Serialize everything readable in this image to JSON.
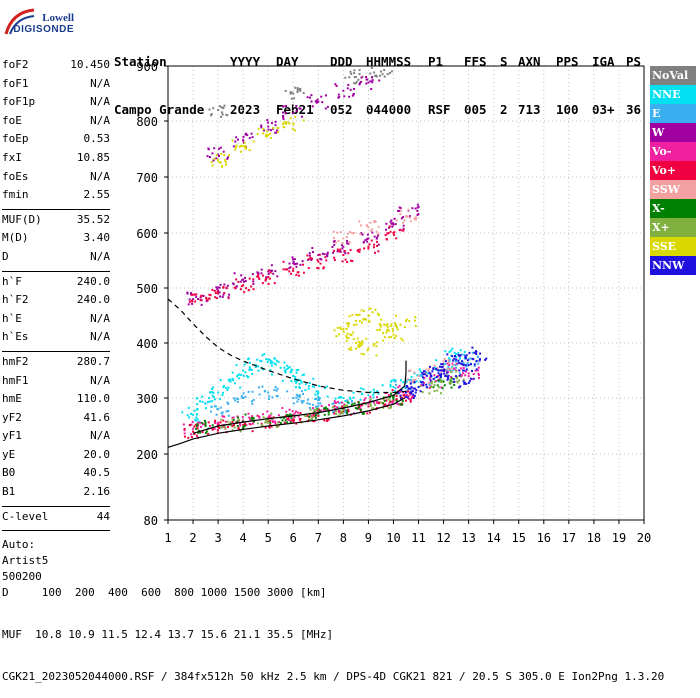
{
  "logo": {
    "line1": "Lowell",
    "line2": "DIGISONDE"
  },
  "header": {
    "labels": [
      "Station",
      "YYYY",
      "DAY",
      "DDD",
      "HHMMSS",
      "P1",
      "FFS",
      "S",
      "AXN",
      "PPS",
      "IGA",
      "PS"
    ],
    "values": [
      "Campo Grande",
      "2023",
      "Feb21",
      "052",
      "044000",
      "RSF",
      "005",
      "2",
      "713",
      "100",
      "03+",
      "36"
    ]
  },
  "params": [
    {
      "label": "foF2",
      "value": "10.450"
    },
    {
      "label": "foF1",
      "value": "N/A"
    },
    {
      "label": "foF1p",
      "value": "N/A"
    },
    {
      "label": "foE",
      "value": "N/A"
    },
    {
      "label": "foEp",
      "value": "0.53"
    },
    {
      "label": "fxI",
      "value": "10.85"
    },
    {
      "label": "foEs",
      "value": "N/A"
    },
    {
      "label": "fmin",
      "value": "2.55"
    },
    {
      "label": "MUF(D)",
      "value": "35.52"
    },
    {
      "label": "M(D)",
      "value": "3.40"
    },
    {
      "label": "D",
      "value": "N/A"
    },
    {
      "label": "h`F",
      "value": "240.0"
    },
    {
      "label": "h`F2",
      "value": "240.0"
    },
    {
      "label": "h`E",
      "value": "N/A"
    },
    {
      "label": "h`Es",
      "value": "N/A"
    },
    {
      "label": "hmF2",
      "value": "280.7"
    },
    {
      "label": "hmF1",
      "value": "N/A"
    },
    {
      "label": "hmE",
      "value": "110.0"
    },
    {
      "label": "yF2",
      "value": "41.6"
    },
    {
      "label": "yF1",
      "value": "N/A"
    },
    {
      "label": "yE",
      "value": "20.0"
    },
    {
      "label": "B0",
      "value": "40.5"
    },
    {
      "label": "B1",
      "value": "2.16"
    },
    {
      "label": "C-level",
      "value": "44"
    }
  ],
  "auto": {
    "line1": "Auto:",
    "line2": "Artist5",
    "line3": "500200"
  },
  "legend": [
    {
      "label": "NoVal",
      "color": "#808080"
    },
    {
      "label": "NNE",
      "color": "#00e0f0"
    },
    {
      "label": "E",
      "color": "#3ab0f0"
    },
    {
      "label": "W",
      "color": "#a000a0"
    },
    {
      "label": "Vo-",
      "color": "#f020a0"
    },
    {
      "label": "Vo+",
      "color": "#f00040"
    },
    {
      "label": "SSW",
      "color": "#f4a0a0"
    },
    {
      "label": "X-",
      "color": "#008000"
    },
    {
      "label": "X+",
      "color": "#80b040"
    },
    {
      "label": "SSE",
      "color": "#d8d800"
    },
    {
      "label": "NNW",
      "color": "#2010e0"
    }
  ],
  "footer": {
    "line1": "D     100  200  400  600  800 1000 1500 3000 [km]",
    "line2": "MUF  10.8 10.9 11.5 12.4 13.7 15.6 21.1 35.5 [MHz]",
    "line3": "CGK21_2023052044000.RSF / 384fx512h 50 kHz 2.5 km / DPS-4D CGK21 821 / 20.5 S 305.0 E Ion2Png 1.3.20"
  },
  "chart_data": {
    "type": "scatter",
    "title": "",
    "xlabel": "",
    "ylabel": "",
    "xlim": [
      1,
      20
    ],
    "ylim": [
      80,
      900
    ],
    "x_ticks": [
      1,
      2,
      3,
      4,
      5,
      6,
      7,
      8,
      9,
      10,
      11,
      12,
      13,
      14,
      15,
      16,
      17,
      18,
      19,
      20
    ],
    "y_ticks": [
      80,
      200,
      300,
      400,
      500,
      600,
      700,
      800,
      900
    ],
    "grid": true,
    "series": [
      {
        "name": "NoVal",
        "color": "#808080",
        "points": [
          [
            3.0,
            820
          ],
          [
            6.0,
            850
          ],
          [
            8.5,
            880
          ],
          [
            9.5,
            890
          ]
        ]
      },
      {
        "name": "NNE",
        "color": "#00e0f0",
        "points": [
          [
            2.0,
            270
          ],
          [
            2.5,
            290
          ],
          [
            3.0,
            310
          ],
          [
            3.5,
            330
          ],
          [
            4.0,
            350
          ],
          [
            4.5,
            360
          ],
          [
            5.0,
            370
          ],
          [
            5.5,
            355
          ],
          [
            6.0,
            340
          ],
          [
            6.5,
            325
          ],
          [
            7.0,
            310
          ],
          [
            8.0,
            300
          ],
          [
            9.0,
            305
          ],
          [
            10.0,
            320
          ],
          [
            11.0,
            340
          ],
          [
            12.0,
            360
          ],
          [
            12.5,
            380
          ]
        ]
      },
      {
        "name": "E",
        "color": "#3ab0f0",
        "points": [
          [
            3.0,
            280
          ],
          [
            4.0,
            300
          ],
          [
            5.0,
            310
          ],
          [
            6.0,
            300
          ],
          [
            7.0,
            290
          ],
          [
            8.0,
            285
          ],
          [
            10.5,
            320
          ],
          [
            11.5,
            330
          ],
          [
            12.5,
            355
          ],
          [
            13.0,
            370
          ]
        ]
      },
      {
        "name": "W",
        "color": "#a000a0",
        "points": [
          [
            2.2,
            480
          ],
          [
            3.0,
            495
          ],
          [
            4.0,
            515
          ],
          [
            5.0,
            530
          ],
          [
            6.0,
            545
          ],
          [
            7.0,
            560
          ],
          [
            8.0,
            575
          ],
          [
            9.0,
            590
          ],
          [
            10.0,
            615
          ],
          [
            10.6,
            640
          ],
          [
            3.0,
            740
          ],
          [
            4.0,
            765
          ],
          [
            5.0,
            790
          ],
          [
            6.0,
            815
          ],
          [
            7.0,
            835
          ],
          [
            8.0,
            855
          ],
          [
            9.0,
            870
          ]
        ]
      },
      {
        "name": "Vo-",
        "color": "#f020a0",
        "points": [
          [
            2.0,
            245
          ],
          [
            3.0,
            255
          ],
          [
            4.0,
            260
          ],
          [
            5.0,
            265
          ],
          [
            6.0,
            270
          ],
          [
            7.0,
            275
          ],
          [
            8.0,
            282
          ],
          [
            9.0,
            290
          ],
          [
            10.0,
            300
          ],
          [
            10.4,
            310
          ],
          [
            11.5,
            330
          ],
          [
            12.5,
            350
          ],
          [
            13.0,
            345
          ]
        ]
      },
      {
        "name": "Vo+",
        "color": "#f00040",
        "points": [
          [
            2.0,
            240
          ],
          [
            3.0,
            248
          ],
          [
            4.0,
            252
          ],
          [
            5.0,
            258
          ],
          [
            6.0,
            262
          ],
          [
            7.0,
            268
          ],
          [
            8.0,
            276
          ],
          [
            9.0,
            285
          ],
          [
            10.0,
            295
          ],
          [
            10.4,
            305
          ],
          [
            2.3,
            478
          ],
          [
            3.0,
            490
          ],
          [
            4.0,
            505
          ],
          [
            5.0,
            520
          ],
          [
            6.0,
            535
          ],
          [
            7.0,
            548
          ],
          [
            8.0,
            560
          ],
          [
            9.0,
            575
          ],
          [
            10.0,
            600
          ]
        ]
      },
      {
        "name": "SSW",
        "color": "#f4a0a0",
        "points": [
          [
            8.0,
            590
          ],
          [
            9.0,
            610
          ],
          [
            10.5,
            630
          ],
          [
            11.0,
            340
          ],
          [
            12.0,
            360
          ]
        ]
      },
      {
        "name": "X-",
        "color": "#008000",
        "points": [
          [
            2.5,
            250
          ],
          [
            4.0,
            258
          ],
          [
            5.5,
            265
          ],
          [
            7.0,
            272
          ],
          [
            8.5,
            282
          ],
          [
            10.0,
            298
          ],
          [
            12.0,
            330
          ]
        ]
      },
      {
        "name": "X+",
        "color": "#80b040",
        "points": [
          [
            3.5,
            252
          ],
          [
            5.0,
            260
          ],
          [
            6.5,
            268
          ],
          [
            8.0,
            278
          ],
          [
            9.5,
            292
          ],
          [
            11.5,
            320
          ],
          [
            12.5,
            340
          ]
        ]
      },
      {
        "name": "SSE",
        "color": "#d8d800",
        "points": [
          [
            3.0,
            730
          ],
          [
            4.0,
            755
          ],
          [
            5.0,
            775
          ],
          [
            6.0,
            795
          ],
          [
            8.0,
            425
          ],
          [
            8.5,
            440
          ],
          [
            9.0,
            450
          ],
          [
            9.5,
            430
          ],
          [
            10.0,
            415
          ],
          [
            10.5,
            440
          ],
          [
            9.0,
            390
          ],
          [
            8.5,
            400
          ]
        ]
      },
      {
        "name": "NNW",
        "color": "#2010e0",
        "points": [
          [
            10.5,
            310
          ],
          [
            11.0,
            320
          ],
          [
            11.5,
            340
          ],
          [
            12.0,
            350
          ],
          [
            12.5,
            370
          ],
          [
            13.0,
            360
          ],
          [
            13.3,
            380
          ],
          [
            12.8,
            330
          ],
          [
            11.8,
            345
          ]
        ]
      }
    ],
    "curves": [
      {
        "kind": "dashed",
        "color": "#000000",
        "points": [
          [
            1.0,
            480
          ],
          [
            1.5,
            460
          ],
          [
            2.0,
            435
          ],
          [
            2.5,
            412
          ],
          [
            3.0,
            392
          ],
          [
            3.5,
            378
          ],
          [
            4.0,
            367
          ],
          [
            5.0,
            350
          ],
          [
            6.0,
            335
          ],
          [
            7.0,
            322
          ],
          [
            8.0,
            314
          ],
          [
            9.0,
            310
          ],
          [
            10.0,
            310
          ],
          [
            10.5,
            312
          ]
        ]
      },
      {
        "kind": "solid",
        "color": "#000000",
        "points": [
          [
            1.0,
            212
          ],
          [
            1.5,
            219
          ],
          [
            2.0,
            227
          ],
          [
            3.0,
            237
          ],
          [
            4.0,
            244
          ],
          [
            5.0,
            250
          ],
          [
            6.0,
            255
          ],
          [
            7.0,
            261
          ],
          [
            8.0,
            268
          ],
          [
            9.0,
            277
          ],
          [
            10.0,
            289
          ],
          [
            10.45,
            300
          ]
        ]
      },
      {
        "kind": "solid",
        "color": "#000000",
        "points": [
          [
            2.0,
            237
          ],
          [
            3.0,
            250
          ],
          [
            4.0,
            257
          ],
          [
            5.0,
            263
          ],
          [
            6.0,
            268
          ],
          [
            7.0,
            274
          ],
          [
            8.0,
            282
          ],
          [
            9.0,
            292
          ],
          [
            10.0,
            305
          ],
          [
            10.45,
            322
          ],
          [
            10.5,
            345
          ],
          [
            10.5,
            368
          ]
        ]
      }
    ]
  }
}
